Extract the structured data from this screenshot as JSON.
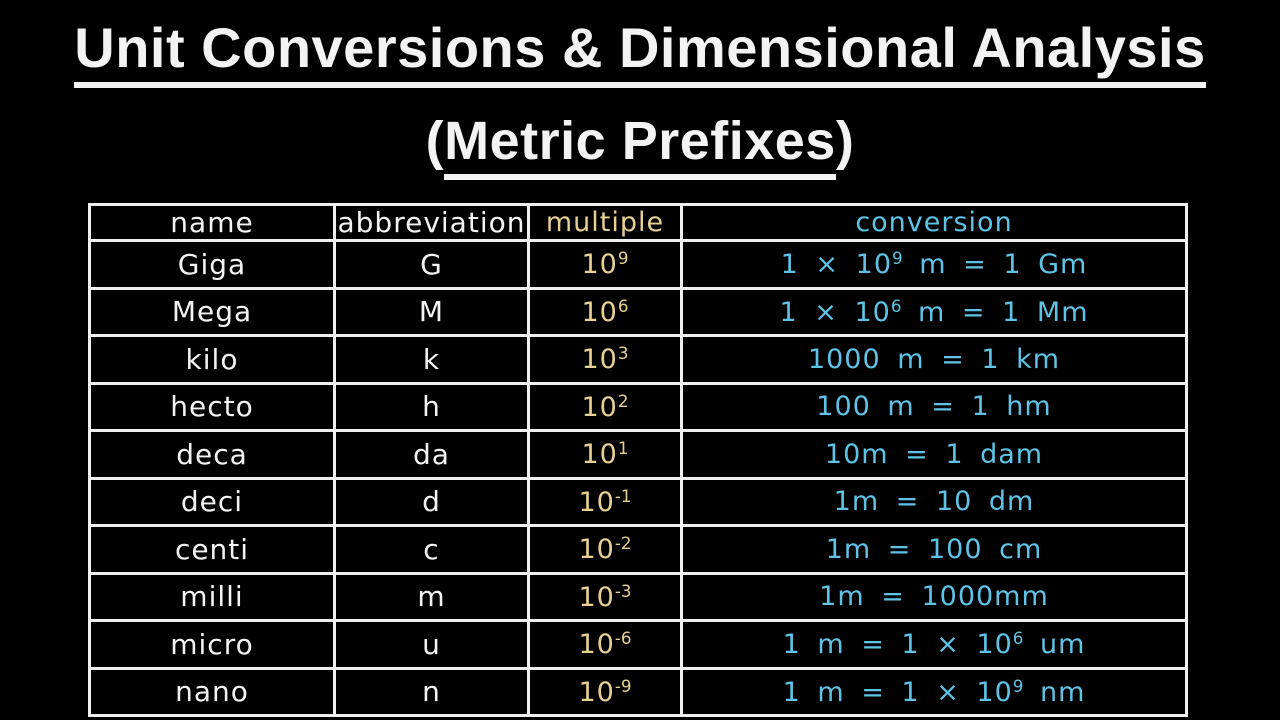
{
  "colors": {
    "background": "#000000",
    "text_white": "#f3f3f3",
    "multiple_yellow": "#e7d091",
    "conversion_blue": "#5ec3e6",
    "border_white": "#efefef"
  },
  "title": {
    "line1": "Unit Conversions & Dimensional Analysis",
    "line2_open": "(",
    "line2_text": "Metric Prefixes",
    "line2_close": ")"
  },
  "table": {
    "headers": [
      {
        "key": "name",
        "label": "name"
      },
      {
        "key": "abbreviation",
        "label": "abbreviation"
      },
      {
        "key": "multiple",
        "label": "multiple"
      },
      {
        "key": "conversion",
        "label": "conversion"
      }
    ],
    "rows": [
      {
        "name": "Giga",
        "abbreviation": "G",
        "multiple": {
          "base": "10",
          "exp": "9"
        },
        "conversion": {
          "pre": "1 × 10",
          "exp": "9",
          "post": " m = 1 Gm"
        }
      },
      {
        "name": "Mega",
        "abbreviation": "M",
        "multiple": {
          "base": "10",
          "exp": "6"
        },
        "conversion": {
          "pre": "1 × 10",
          "exp": "6",
          "post": " m = 1 Mm"
        }
      },
      {
        "name": "kilo",
        "abbreviation": "k",
        "multiple": {
          "base": "10",
          "exp": "3"
        },
        "conversion": {
          "pre": "1000 m = 1 km",
          "exp": "",
          "post": ""
        }
      },
      {
        "name": "hecto",
        "abbreviation": "h",
        "multiple": {
          "base": "10",
          "exp": "2"
        },
        "conversion": {
          "pre": "100 m = 1 hm",
          "exp": "",
          "post": ""
        }
      },
      {
        "name": "deca",
        "abbreviation": "da",
        "multiple": {
          "base": "10",
          "exp": "1"
        },
        "conversion": {
          "pre": "10m = 1 dam",
          "exp": "",
          "post": ""
        }
      },
      {
        "name": "deci",
        "abbreviation": "d",
        "multiple": {
          "base": "10",
          "exp": "-1"
        },
        "conversion": {
          "pre": "1m = 10 dm",
          "exp": "",
          "post": ""
        }
      },
      {
        "name": "centi",
        "abbreviation": "c",
        "multiple": {
          "base": "10",
          "exp": "-2"
        },
        "conversion": {
          "pre": "1m = 100 cm",
          "exp": "",
          "post": ""
        }
      },
      {
        "name": "milli",
        "abbreviation": "m",
        "multiple": {
          "base": "10",
          "exp": "-3"
        },
        "conversion": {
          "pre": "1m = 1000mm",
          "exp": "",
          "post": ""
        }
      },
      {
        "name": "micro",
        "abbreviation": "u",
        "multiple": {
          "base": "10",
          "exp": "-6"
        },
        "conversion": {
          "pre": "1 m = 1 × 10",
          "exp": "6",
          "post": " um"
        }
      },
      {
        "name": "nano",
        "abbreviation": "n",
        "multiple": {
          "base": "10",
          "exp": "-9"
        },
        "conversion": {
          "pre": "1 m = 1 × 10",
          "exp": "9",
          "post": " nm"
        }
      }
    ]
  }
}
